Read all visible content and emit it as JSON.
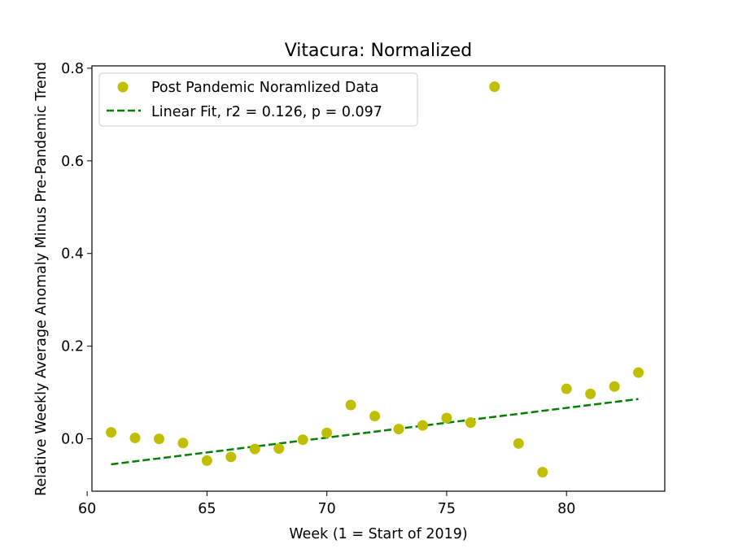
{
  "chart_data": {
    "type": "scatter",
    "title": "Vitacura: Normalized",
    "xlabel": "Week (1 = Start of 2019)",
    "ylabel": "Relative Weekly Average Anomaly Minus Pre-Pandemic Trend",
    "xlim": [
      60.2,
      84.1
    ],
    "ylim": [
      -0.113,
      0.805
    ],
    "xticks": [
      60,
      65,
      70,
      75,
      80
    ],
    "xtick_labels": [
      "60",
      "65",
      "70",
      "75",
      "80"
    ],
    "yticks": [
      0.0,
      0.2,
      0.4,
      0.6,
      0.8
    ],
    "ytick_labels": [
      "0.0",
      "0.2",
      "0.4",
      "0.6",
      "0.8"
    ],
    "grid": false,
    "legend_position": "upper-left",
    "series": [
      {
        "name": "Post Pandemic Noramlized Data",
        "kind": "scatter",
        "color": "#bfbf00",
        "x": [
          61,
          62,
          63,
          64,
          65,
          66,
          67,
          68,
          69,
          70,
          71,
          72,
          73,
          74,
          75,
          76,
          77,
          78,
          79,
          80,
          81,
          82,
          83
        ],
        "y": [
          0.014,
          0.002,
          0.0,
          -0.009,
          -0.047,
          -0.039,
          -0.022,
          -0.021,
          -0.002,
          0.013,
          0.073,
          0.049,
          0.021,
          0.029,
          0.045,
          0.035,
          0.76,
          -0.01,
          -0.072,
          0.108,
          0.097,
          0.113,
          0.143
        ]
      },
      {
        "name": "Linear Fit, r2 = 0.126, p = 0.097",
        "kind": "line",
        "style": "dashed",
        "color": "#007f00",
        "x": [
          61,
          83
        ],
        "y": [
          -0.055,
          0.086
        ]
      }
    ]
  }
}
